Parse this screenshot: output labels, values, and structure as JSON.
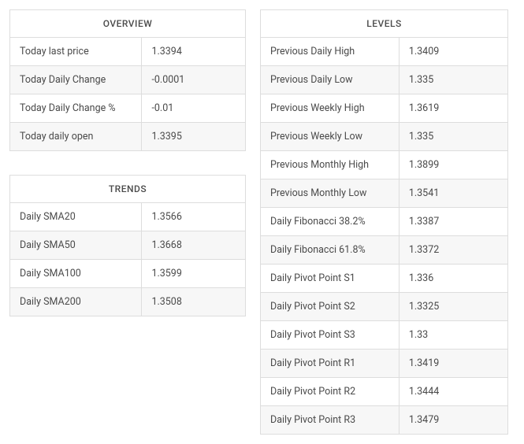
{
  "overview": {
    "title": "OVERVIEW",
    "rows": [
      {
        "label": "Today last price",
        "value": "1.3394"
      },
      {
        "label": "Today Daily Change",
        "value": "-0.0001"
      },
      {
        "label": "Today Daily Change %",
        "value": "-0.01"
      },
      {
        "label": "Today daily open",
        "value": "1.3395"
      }
    ]
  },
  "trends": {
    "title": "TRENDS",
    "rows": [
      {
        "label": "Daily SMA20",
        "value": "1.3566"
      },
      {
        "label": "Daily SMA50",
        "value": "1.3668"
      },
      {
        "label": "Daily SMA100",
        "value": "1.3599"
      },
      {
        "label": "Daily SMA200",
        "value": "1.3508"
      }
    ]
  },
  "levels": {
    "title": "LEVELS",
    "rows": [
      {
        "label": "Previous Daily High",
        "value": "1.3409"
      },
      {
        "label": "Previous Daily Low",
        "value": "1.335"
      },
      {
        "label": "Previous Weekly High",
        "value": "1.3619"
      },
      {
        "label": "Previous Weekly Low",
        "value": "1.335"
      },
      {
        "label": "Previous Monthly High",
        "value": "1.3899"
      },
      {
        "label": "Previous Monthly Low",
        "value": "1.3541"
      },
      {
        "label": "Daily Fibonacci 38.2%",
        "value": "1.3387"
      },
      {
        "label": "Daily Fibonacci 61.8%",
        "value": "1.3372"
      },
      {
        "label": "Daily Pivot Point S1",
        "value": "1.336"
      },
      {
        "label": "Daily Pivot Point S2",
        "value": "1.3325"
      },
      {
        "label": "Daily Pivot Point S3",
        "value": "1.33"
      },
      {
        "label": "Daily Pivot Point R1",
        "value": "1.3419"
      },
      {
        "label": "Daily Pivot Point R2",
        "value": "1.3444"
      },
      {
        "label": "Daily Pivot Point R3",
        "value": "1.3479"
      }
    ]
  },
  "style": {
    "border_color": "#dddddd",
    "alt_row_bg": "#f7f7f7",
    "text_color": "#4a4a4a",
    "font_size_header": 12,
    "font_size_cell": 12.5
  }
}
